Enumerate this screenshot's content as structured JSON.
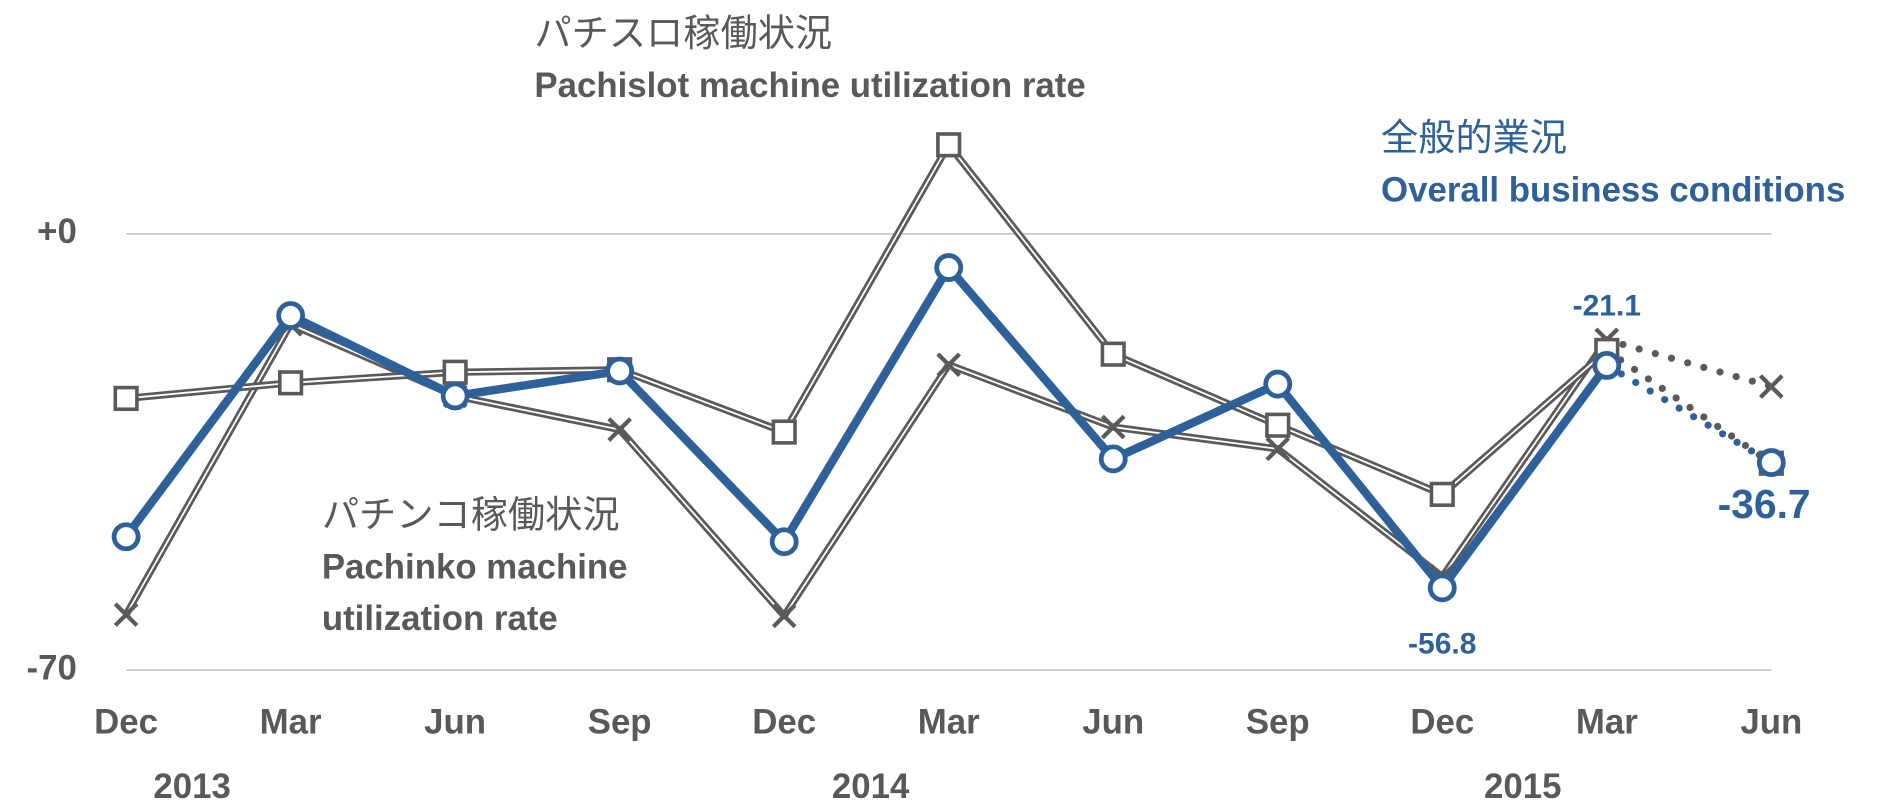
{
  "chart_data": {
    "type": "line",
    "categories": [
      "Dec",
      "Mar",
      "Jun",
      "Sep",
      "Dec",
      "Mar",
      "Jun",
      "Sep",
      "Dec",
      "Mar",
      "Jun"
    ],
    "years": [
      "2013",
      "2014",
      "2015"
    ],
    "ylim": [
      -70,
      20
    ],
    "yticks": [
      {
        "value": 0,
        "label": "+0"
      },
      -70
    ],
    "grid": true,
    "dotted_from_index": 9,
    "series": [
      {
        "name": "パチンコ稼働状況",
        "name_en_lines": [
          "Pachinko machine",
          "utilization rate"
        ],
        "color": "#5a5a5a",
        "marker": "x",
        "values": [
          -61.1,
          -14.5,
          -26.0,
          -31.4,
          -61.3,
          -21.0,
          -31.0,
          -34.5,
          -55.0,
          -17.0,
          -24.5
        ]
      },
      {
        "name": "パチスロ稼働状況",
        "name_en_lines": [
          "Pachislot machine utilization rate"
        ],
        "color": "#5a5a5a",
        "marker": "square",
        "values": [
          -26.4,
          -23.9,
          -22.2,
          -21.8,
          -31.8,
          14.3,
          -19.3,
          -30.7,
          -41.8,
          -18.7,
          -36.8
        ]
      },
      {
        "name": "全般的業況",
        "name_en_lines": [
          "Overall business conditions"
        ],
        "color": "#2e6099",
        "marker": "circle",
        "values": [
          -48.6,
          -13.1,
          -26.0,
          -22.0,
          -49.4,
          -5.4,
          -36.1,
          -24.1,
          -56.8,
          -21.1,
          -36.7
        ],
        "value_labels": [
          null,
          null,
          null,
          null,
          null,
          null,
          null,
          null,
          "-56.8",
          "-21.1",
          "-36.7"
        ]
      }
    ]
  }
}
